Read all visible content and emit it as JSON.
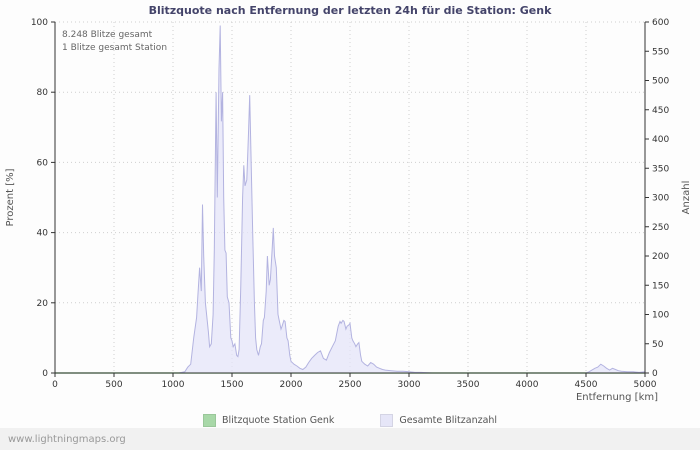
{
  "footer": "www.lightningmaps.org",
  "annotations": {
    "total": "8.248 Blitze gesamt",
    "station": "1 Blitze gesamt Station"
  },
  "legend": {
    "station": {
      "label": "Blitzquote Station Genk",
      "color": "#a8d8a8"
    },
    "total": {
      "label": "Gesamte Blitzanzahl",
      "color": "#e6e6f8"
    }
  },
  "colors": {
    "title": "#44446a",
    "axis": "#333333",
    "grid": "#cfcfcf",
    "area_stroke": "#b3b3e0",
    "area_fill": "rgba(228,228,248,0.75)",
    "station_stroke": "#9fd49f"
  },
  "chart_data": {
    "type": "area",
    "title": "Blitzquote nach Entfernung der letzten 24h für die Station: Genk",
    "xlabel": "Entfernung   [km]",
    "ylabel_left": "Prozent   [%]",
    "ylabel_right": "Anzahl",
    "xlim": [
      0,
      5000
    ],
    "ylim_left": [
      0,
      100
    ],
    "ylim_right": [
      0,
      600
    ],
    "x_ticks": [
      0,
      500,
      1000,
      1500,
      2000,
      2500,
      3000,
      3500,
      4000,
      4500,
      5000
    ],
    "y_ticks_left": [
      0,
      20,
      40,
      60,
      80,
      100
    ],
    "y_ticks_right": [
      0,
      50,
      100,
      150,
      200,
      250,
      300,
      350,
      400,
      450,
      500,
      550,
      600
    ],
    "grid": true,
    "legend_position": "bottom",
    "series": [
      {
        "name": "Gesamte Blitzanzahl",
        "axis": "right",
        "style": "area",
        "points": [
          [
            0,
            0
          ],
          [
            400,
            0
          ],
          [
            800,
            0
          ],
          [
            1050,
            0
          ],
          [
            1100,
            2
          ],
          [
            1125,
            10
          ],
          [
            1150,
            15
          ],
          [
            1175,
            60
          ],
          [
            1200,
            95
          ],
          [
            1210,
            130
          ],
          [
            1225,
            180
          ],
          [
            1240,
            140
          ],
          [
            1250,
            288
          ],
          [
            1260,
            200
          ],
          [
            1275,
            120
          ],
          [
            1300,
            70
          ],
          [
            1310,
            45
          ],
          [
            1325,
            50
          ],
          [
            1340,
            100
          ],
          [
            1350,
            210
          ],
          [
            1365,
            480
          ],
          [
            1375,
            300
          ],
          [
            1390,
            520
          ],
          [
            1400,
            594
          ],
          [
            1410,
            430
          ],
          [
            1420,
            480
          ],
          [
            1430,
            300
          ],
          [
            1440,
            210
          ],
          [
            1450,
            205
          ],
          [
            1460,
            130
          ],
          [
            1475,
            120
          ],
          [
            1490,
            60
          ],
          [
            1500,
            55
          ],
          [
            1510,
            45
          ],
          [
            1525,
            50
          ],
          [
            1540,
            30
          ],
          [
            1550,
            28
          ],
          [
            1560,
            40
          ],
          [
            1575,
            150
          ],
          [
            1590,
            300
          ],
          [
            1600,
            355
          ],
          [
            1610,
            320
          ],
          [
            1625,
            330
          ],
          [
            1640,
            410
          ],
          [
            1650,
            475
          ],
          [
            1660,
            380
          ],
          [
            1675,
            240
          ],
          [
            1690,
            120
          ],
          [
            1700,
            60
          ],
          [
            1710,
            40
          ],
          [
            1725,
            30
          ],
          [
            1740,
            45
          ],
          [
            1750,
            50
          ],
          [
            1765,
            90
          ],
          [
            1775,
            95
          ],
          [
            1790,
            140
          ],
          [
            1800,
            200
          ],
          [
            1815,
            150
          ],
          [
            1825,
            160
          ],
          [
            1840,
            210
          ],
          [
            1850,
            248
          ],
          [
            1860,
            200
          ],
          [
            1875,
            180
          ],
          [
            1890,
            100
          ],
          [
            1900,
            90
          ],
          [
            1915,
            75
          ],
          [
            1925,
            80
          ],
          [
            1940,
            90
          ],
          [
            1950,
            88
          ],
          [
            1965,
            60
          ],
          [
            1975,
            55
          ],
          [
            1990,
            30
          ],
          [
            2000,
            20
          ],
          [
            2025,
            15
          ],
          [
            2050,
            12
          ],
          [
            2075,
            8
          ],
          [
            2100,
            6
          ],
          [
            2125,
            10
          ],
          [
            2150,
            18
          ],
          [
            2175,
            25
          ],
          [
            2200,
            30
          ],
          [
            2225,
            35
          ],
          [
            2250,
            38
          ],
          [
            2275,
            25
          ],
          [
            2300,
            22
          ],
          [
            2325,
            35
          ],
          [
            2350,
            45
          ],
          [
            2375,
            55
          ],
          [
            2400,
            80
          ],
          [
            2415,
            88
          ],
          [
            2425,
            85
          ],
          [
            2440,
            90
          ],
          [
            2450,
            88
          ],
          [
            2465,
            75
          ],
          [
            2475,
            80
          ],
          [
            2490,
            82
          ],
          [
            2500,
            85
          ],
          [
            2515,
            60
          ],
          [
            2525,
            55
          ],
          [
            2540,
            50
          ],
          [
            2550,
            45
          ],
          [
            2565,
            50
          ],
          [
            2575,
            52
          ],
          [
            2590,
            30
          ],
          [
            2600,
            20
          ],
          [
            2625,
            15
          ],
          [
            2650,
            12
          ],
          [
            2675,
            18
          ],
          [
            2700,
            15
          ],
          [
            2725,
            10
          ],
          [
            2750,
            8
          ],
          [
            2775,
            6
          ],
          [
            2800,
            5
          ],
          [
            2850,
            4
          ],
          [
            2900,
            3
          ],
          [
            2950,
            3
          ],
          [
            3000,
            2
          ],
          [
            3050,
            1
          ],
          [
            3100,
            1
          ],
          [
            3200,
            0
          ],
          [
            3500,
            0
          ],
          [
            3800,
            0
          ],
          [
            4100,
            0
          ],
          [
            4400,
            0
          ],
          [
            4500,
            0
          ],
          [
            4525,
            2
          ],
          [
            4550,
            5
          ],
          [
            4575,
            8
          ],
          [
            4600,
            10
          ],
          [
            4625,
            15
          ],
          [
            4650,
            12
          ],
          [
            4675,
            8
          ],
          [
            4700,
            5
          ],
          [
            4725,
            8
          ],
          [
            4750,
            6
          ],
          [
            4775,
            4
          ],
          [
            4800,
            3
          ],
          [
            4850,
            2
          ],
          [
            4900,
            2
          ],
          [
            4950,
            1
          ],
          [
            5000,
            2
          ]
        ]
      },
      {
        "name": "Blitzquote Station Genk",
        "axis": "left",
        "style": "line",
        "points": [
          [
            0,
            0
          ],
          [
            5000,
            0
          ]
        ]
      }
    ]
  }
}
